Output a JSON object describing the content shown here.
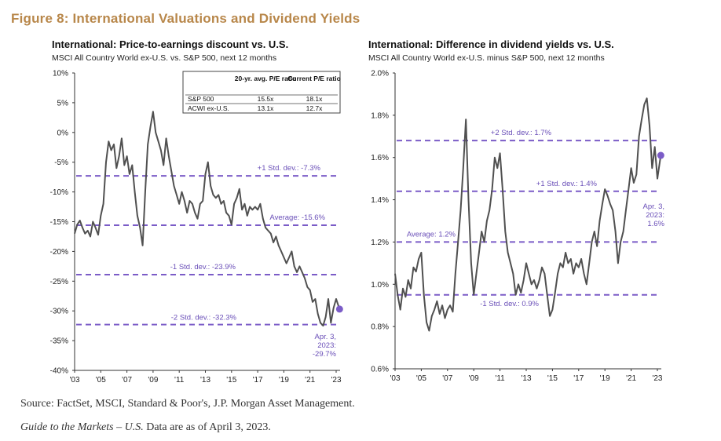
{
  "figure_title": "Figure 8: International Valuations and Dividend Yields",
  "footer": {
    "source": "Source: FactSet, MSCI, Standard & Poor's, J.P. Morgan Asset Management.",
    "note_italic": "Guide to the Markets – U.S.",
    "note_rest": " Data are as of April 3, 2023."
  },
  "colors": {
    "figure_title": "#b8874a",
    "series_line": "#505050",
    "reference_lines": "#7b5cc7",
    "marker": "#7b5cc7",
    "annotation_text": "#6a4fb8"
  },
  "chart_data": [
    {
      "type": "line",
      "title": "International: Price-to-earnings discount vs. U.S.",
      "subtitle": "MSCI All Country World ex-U.S. vs. S&P 500, next 12 months",
      "xlabel": "",
      "ylabel": "",
      "xlim": [
        2003,
        2023.3
      ],
      "ylim": [
        -40,
        10
      ],
      "x_ticks": [
        "'03",
        "'05",
        "'07",
        "'09",
        "'11",
        "'13",
        "'15",
        "'17",
        "'19",
        "'21",
        "'23"
      ],
      "y_ticks": [
        "10%",
        "5%",
        "0%",
        "-5%",
        "-10%",
        "-15%",
        "-20%",
        "-25%",
        "-30%",
        "-35%",
        "-40%"
      ],
      "grid": false,
      "series": [
        {
          "x": [
            2003.0,
            2003.2,
            2003.4,
            2003.6,
            2003.8,
            2004.0,
            2004.2,
            2004.4,
            2004.6,
            2004.8,
            2005.0,
            2005.2,
            2005.4,
            2005.6,
            2005.8,
            2006.0,
            2006.2,
            2006.4,
            2006.6,
            2006.8,
            2007.0,
            2007.2,
            2007.4,
            2007.6,
            2007.8,
            2008.0,
            2008.2,
            2008.4,
            2008.6,
            2008.8,
            2009.0,
            2009.2,
            2009.4,
            2009.6,
            2009.8,
            2010.0,
            2010.2,
            2010.4,
            2010.6,
            2010.8,
            2011.0,
            2011.2,
            2011.4,
            2011.6,
            2011.8,
            2012.0,
            2012.2,
            2012.4,
            2012.6,
            2012.8,
            2013.0,
            2013.2,
            2013.4,
            2013.6,
            2013.8,
            2014.0,
            2014.2,
            2014.4,
            2014.6,
            2014.8,
            2015.0,
            2015.2,
            2015.4,
            2015.6,
            2015.8,
            2016.0,
            2016.2,
            2016.4,
            2016.6,
            2016.8,
            2017.0,
            2017.2,
            2017.4,
            2017.6,
            2017.8,
            2018.0,
            2018.2,
            2018.4,
            2018.6,
            2018.8,
            2019.0,
            2019.2,
            2019.4,
            2019.6,
            2019.8,
            2020.0,
            2020.2,
            2020.4,
            2020.6,
            2020.8,
            2021.0,
            2021.2,
            2021.4,
            2021.6,
            2021.8,
            2022.0,
            2022.2,
            2022.4,
            2022.6,
            2022.8,
            2023.0,
            2023.26
          ],
          "values": [
            -17.0,
            -15.5,
            -14.8,
            -16.0,
            -17.0,
            -16.5,
            -17.5,
            -15.0,
            -16.0,
            -17.2,
            -14.0,
            -12.0,
            -5.0,
            -1.5,
            -3.0,
            -2.0,
            -6.0,
            -4.0,
            -1.0,
            -5.5,
            -4.0,
            -7.0,
            -5.5,
            -10.0,
            -14.0,
            -16.0,
            -19.0,
            -10.0,
            -2.0,
            1.0,
            3.5,
            0.0,
            -1.5,
            -3.0,
            -5.5,
            -1.0,
            -4.0,
            -6.5,
            -9.0,
            -10.5,
            -12.0,
            -10.0,
            -11.5,
            -13.5,
            -11.5,
            -12.0,
            -13.5,
            -14.5,
            -12.0,
            -11.5,
            -7.0,
            -5.0,
            -9.0,
            -10.5,
            -11.0,
            -10.5,
            -12.0,
            -11.5,
            -13.5,
            -14.0,
            -15.5,
            -12.0,
            -11.0,
            -9.5,
            -13.0,
            -12.0,
            -14.0,
            -12.5,
            -13.0,
            -12.5,
            -13.0,
            -12.0,
            -14.5,
            -16.0,
            -16.5,
            -17.0,
            -18.5,
            -17.5,
            -19.0,
            -20.0,
            -21.0,
            -22.0,
            -21.0,
            -20.0,
            -22.5,
            -23.5,
            -22.5,
            -23.5,
            -24.5,
            -26.0,
            -26.5,
            -28.5,
            -28.0,
            -30.5,
            -32.0,
            -32.5,
            -31.0,
            -28.0,
            -32.0,
            -29.5,
            -28.0,
            -29.7
          ]
        }
      ],
      "reference_lines": [
        {
          "label": "+1 Std. dev.: -7.3%",
          "value": -7.3
        },
        {
          "label": "Average: -15.6%",
          "value": -15.6
        },
        {
          "label": "-1 Std. dev.: -23.9%",
          "value": -23.9
        },
        {
          "label": "-2 Std. dev.: -32.3%",
          "value": -32.3
        }
      ],
      "endpoint": {
        "x": 2023.26,
        "value": -29.7,
        "label_lines": [
          "Apr. 3,",
          "2023:",
          "-29.7%"
        ]
      },
      "table": {
        "headers": [
          "",
          "20-yr. avg. P/E ratio",
          "Current P/E ratio"
        ],
        "rows": [
          [
            "S&P 500",
            "15.5x",
            "18.1x"
          ],
          [
            "ACWI ex-U.S.",
            "13.1x",
            "12.7x"
          ]
        ]
      }
    },
    {
      "type": "line",
      "title": "International: Difference in dividend yields vs. U.S.",
      "subtitle": "MSCI All Country World ex-U.S. minus S&P 500, next 12 months",
      "xlabel": "",
      "ylabel": "",
      "xlim": [
        2003,
        2023.3
      ],
      "ylim": [
        0.6,
        2.0
      ],
      "x_ticks": [
        "'03",
        "'05",
        "'07",
        "'09",
        "'11",
        "'13",
        "'15",
        "'17",
        "'19",
        "'21",
        "'23"
      ],
      "y_ticks": [
        "2.0%",
        "1.8%",
        "1.6%",
        "1.4%",
        "1.2%",
        "1.0%",
        "0.8%",
        "0.6%"
      ],
      "grid": false,
      "series": [
        {
          "x": [
            2003.0,
            2003.2,
            2003.4,
            2003.6,
            2003.8,
            2004.0,
            2004.2,
            2004.4,
            2004.6,
            2004.8,
            2005.0,
            2005.2,
            2005.4,
            2005.6,
            2005.8,
            2006.0,
            2006.2,
            2006.4,
            2006.6,
            2006.8,
            2007.0,
            2007.2,
            2007.4,
            2007.6,
            2007.8,
            2008.0,
            2008.2,
            2008.4,
            2008.6,
            2008.8,
            2009.0,
            2009.2,
            2009.4,
            2009.6,
            2009.8,
            2010.0,
            2010.2,
            2010.4,
            2010.6,
            2010.8,
            2011.0,
            2011.2,
            2011.4,
            2011.6,
            2011.8,
            2012.0,
            2012.2,
            2012.4,
            2012.6,
            2012.8,
            2013.0,
            2013.2,
            2013.4,
            2013.6,
            2013.8,
            2014.0,
            2014.2,
            2014.4,
            2014.6,
            2014.8,
            2015.0,
            2015.2,
            2015.4,
            2015.6,
            2015.8,
            2016.0,
            2016.2,
            2016.4,
            2016.6,
            2016.8,
            2017.0,
            2017.2,
            2017.4,
            2017.6,
            2017.8,
            2018.0,
            2018.2,
            2018.4,
            2018.6,
            2018.8,
            2019.0,
            2019.2,
            2019.4,
            2019.6,
            2019.8,
            2020.0,
            2020.2,
            2020.4,
            2020.6,
            2020.8,
            2021.0,
            2021.2,
            2021.4,
            2021.6,
            2021.8,
            2022.0,
            2022.2,
            2022.4,
            2022.6,
            2022.8,
            2023.0,
            2023.26
          ],
          "values": [
            1.05,
            0.95,
            0.88,
            0.98,
            0.94,
            1.02,
            0.98,
            1.08,
            1.06,
            1.12,
            1.15,
            0.95,
            0.82,
            0.78,
            0.85,
            0.88,
            0.92,
            0.86,
            0.9,
            0.84,
            0.88,
            0.9,
            0.87,
            1.05,
            1.2,
            1.35,
            1.55,
            1.78,
            1.4,
            1.1,
            0.95,
            1.05,
            1.15,
            1.25,
            1.2,
            1.3,
            1.35,
            1.45,
            1.6,
            1.55,
            1.62,
            1.45,
            1.25,
            1.15,
            1.1,
            1.05,
            0.95,
            1.0,
            0.96,
            1.02,
            1.1,
            1.05,
            1.0,
            1.02,
            0.98,
            1.02,
            1.08,
            1.05,
            0.95,
            0.85,
            0.88,
            0.96,
            1.05,
            1.1,
            1.08,
            1.15,
            1.1,
            1.12,
            1.05,
            1.1,
            1.08,
            1.12,
            1.05,
            1.0,
            1.1,
            1.2,
            1.25,
            1.18,
            1.3,
            1.38,
            1.45,
            1.42,
            1.38,
            1.35,
            1.25,
            1.1,
            1.2,
            1.25,
            1.35,
            1.45,
            1.55,
            1.48,
            1.52,
            1.7,
            1.78,
            1.85,
            1.88,
            1.75,
            1.55,
            1.65,
            1.5,
            1.61
          ]
        }
      ],
      "reference_lines": [
        {
          "label": "+2 Std. dev.: 1.7%",
          "value": 1.68
        },
        {
          "label": "+1 Std. dev.: 1.4%",
          "value": 1.44
        },
        {
          "label": "Average: 1.2%",
          "value": 1.2
        },
        {
          "label": "-1 Std. dev.: 0.9%",
          "value": 0.95
        }
      ],
      "endpoint": {
        "x": 2023.26,
        "value": 1.61,
        "label_lines": [
          "Apr. 3,",
          "2023:",
          "1.6%"
        ]
      }
    }
  ]
}
